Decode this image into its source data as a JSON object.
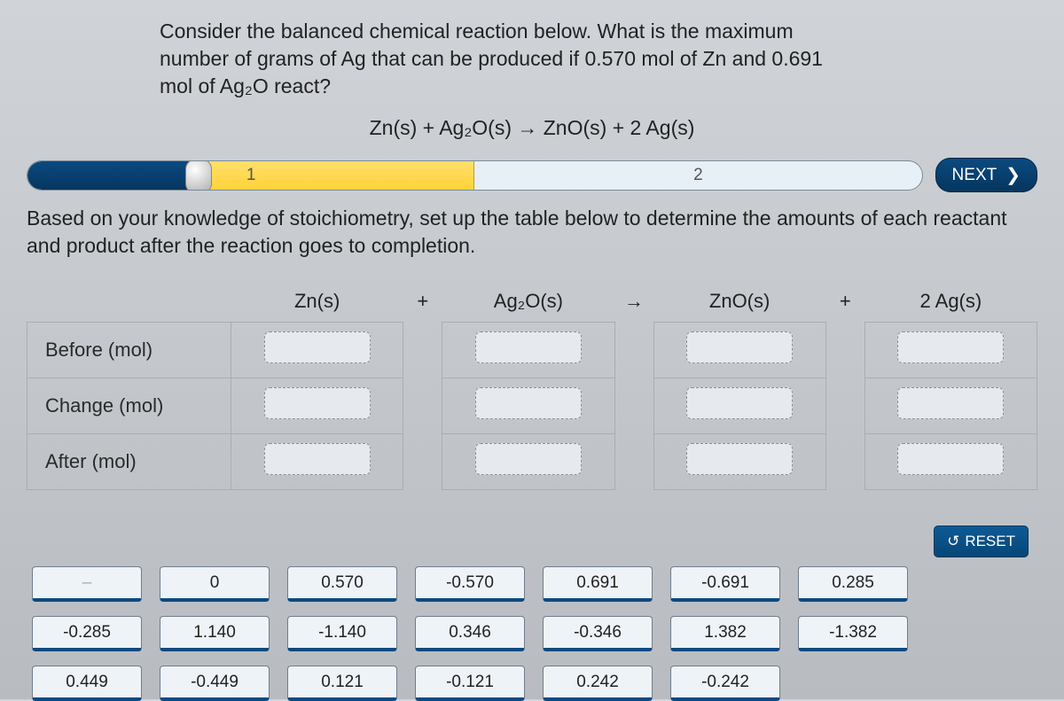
{
  "question": {
    "line1": "Consider the balanced chemical reaction below. What is the maximum",
    "line2": "number of grams of Ag that can be produced if 0.570 mol of Zn and 0.691",
    "line3": "mol of Ag₂O react?"
  },
  "equation": "Zn(s) + Ag₂O(s) → ZnO(s) + 2 Ag(s)",
  "progress": {
    "steps": [
      "1",
      "2"
    ],
    "next_label": "NEXT"
  },
  "subprompt": "Based on your knowledge of stoichiometry, set up the table below to determine the amounts of each reactant and product after the reaction goes to completion.",
  "table": {
    "species": [
      "Zn(s)",
      "Ag₂O(s)",
      "ZnO(s)",
      "2 Ag(s)"
    ],
    "operators": [
      "+",
      "→",
      "+"
    ],
    "rows": [
      "Before (mol)",
      "Change (mol)",
      "After (mol)"
    ]
  },
  "reset_label": "RESET",
  "tiles": [
    "–",
    "0",
    "0.570",
    "-0.570",
    "0.691",
    "-0.691",
    "0.285",
    "-0.285",
    "1.140",
    "-1.140",
    "0.346",
    "-0.346",
    "1.382",
    "-1.382",
    "0.449",
    "-0.449",
    "0.121",
    "-0.121",
    "0.242",
    "-0.242"
  ],
  "colors": {
    "accent_dark_blue": "#0b4a80",
    "progress_yellow": "#ffd23a",
    "panel_bg": "#d0d4d8",
    "tile_border_bottom": "#0b4a80"
  }
}
